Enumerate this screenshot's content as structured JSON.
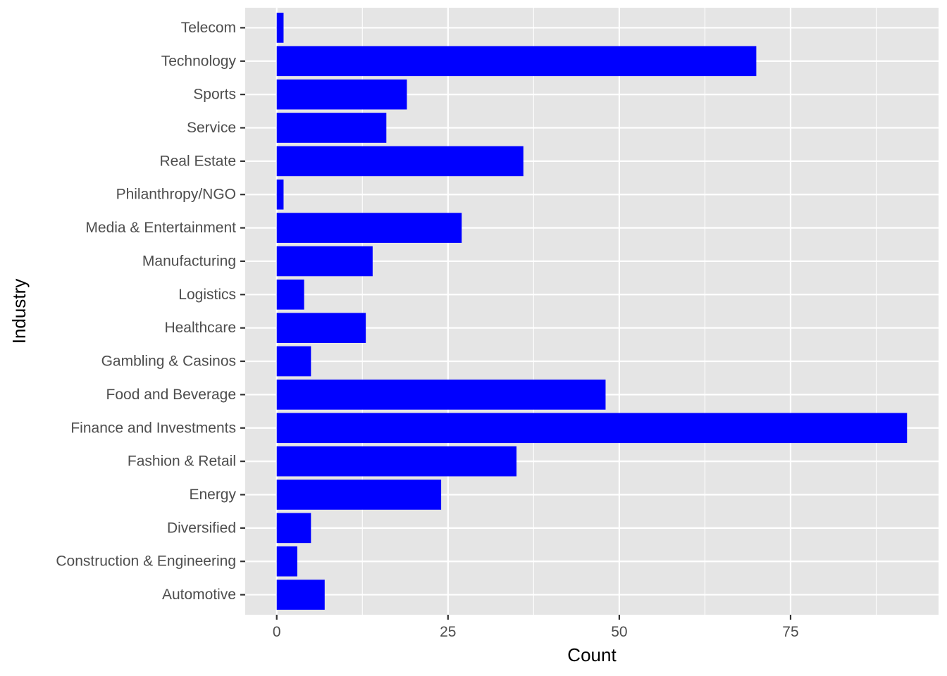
{
  "chart_data": {
    "type": "bar",
    "orientation": "horizontal",
    "xlabel": "Count",
    "ylabel": "Industry",
    "xlim": [
      -4.6,
      96.6
    ],
    "x_ticks": [
      0,
      25,
      50,
      75
    ],
    "x_tick_labels": [
      "0",
      "25",
      "50",
      "75"
    ],
    "grid": true,
    "categories": [
      "Automotive",
      "Construction & Engineering",
      "Diversified",
      "Energy",
      "Fashion & Retail",
      "Finance and Investments",
      "Food and Beverage",
      "Gambling & Casinos",
      "Healthcare",
      "Logistics",
      "Manufacturing",
      "Media & Entertainment",
      "Philanthropy/NGO",
      "Real Estate",
      "Service",
      "Sports",
      "Technology",
      "Telecom"
    ],
    "values": [
      7,
      3,
      5,
      24,
      35,
      92,
      48,
      5,
      13,
      4,
      14,
      27,
      1,
      36,
      16,
      19,
      70,
      1
    ],
    "colors": {
      "bar": "#0000ff",
      "panel": "#e5e5e5",
      "grid": "#ffffff",
      "tick": "#333333",
      "tick_label": "#4d4d4d",
      "axis_title": "#000000"
    }
  }
}
